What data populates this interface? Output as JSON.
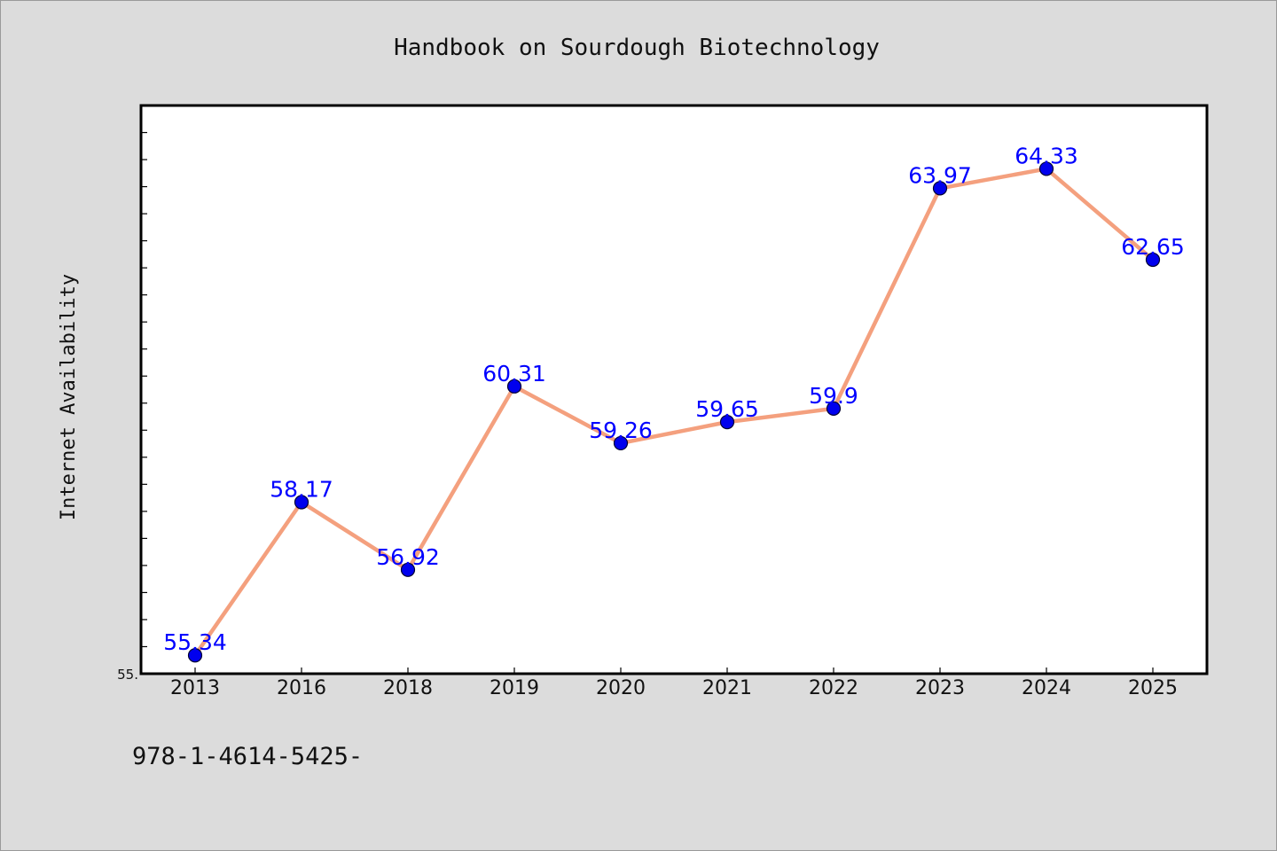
{
  "chart_data": {
    "type": "line",
    "title": "Handbook on Sourdough Biotechnology",
    "xlabel": "",
    "ylabel": "Internet Availability",
    "categories": [
      "2013",
      "2016",
      "2018",
      "2019",
      "2020",
      "2021",
      "2022",
      "2023",
      "2024",
      "2025"
    ],
    "series": [
      {
        "values": [
          55.34,
          58.17,
          56.92,
          60.31,
          59.26,
          59.65,
          59.9,
          63.97,
          64.33,
          62.65
        ],
        "labels": [
          "55.34",
          "58.17",
          "56.92",
          "60.31",
          "59.26",
          "59.65",
          "59.9",
          "63.97",
          "64.33",
          "62.65"
        ],
        "line_color": "#f4a07e",
        "marker_color": "#0000ee"
      }
    ],
    "ylim": [
      55.0,
      65.5
    ],
    "y_tick_label": "55.",
    "grid": false,
    "legend": "none",
    "footer": "978-1-4614-5425-"
  }
}
